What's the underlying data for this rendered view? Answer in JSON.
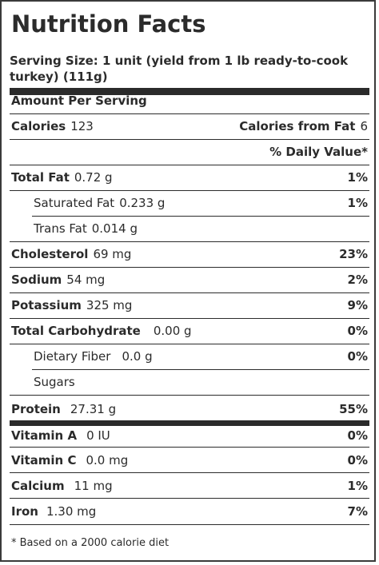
{
  "title": "Nutrition Facts",
  "serving_size": "Serving Size: 1 unit (yield from 1 lb ready-to-cook turkey) (111g)",
  "amount_per_serving": "Amount Per Serving",
  "calories": {
    "label": "Calories",
    "value": "123",
    "from_fat_label": "Calories from Fat",
    "from_fat_value": "6"
  },
  "daily_value_header": "% Daily Value*",
  "nutrients": [
    {
      "name": "Total Fat",
      "amount": "0.72 g",
      "dv": "1%"
    },
    {
      "name": "Saturated Fat",
      "amount": "0.233 g",
      "dv": "1%"
    },
    {
      "name": "Trans Fat",
      "amount": "0.014 g",
      "dv": ""
    },
    {
      "name": "Cholesterol",
      "amount": "69 mg",
      "dv": "23%"
    },
    {
      "name": "Sodium",
      "amount": "54 mg",
      "dv": "2%"
    },
    {
      "name": "Potassium",
      "amount": "325 mg",
      "dv": "9%"
    },
    {
      "name": "Total Carbohydrate",
      "amount": "0.00 g",
      "dv": "0%"
    },
    {
      "name": "Dietary Fiber",
      "amount": "0.0 g",
      "dv": "0%"
    },
    {
      "name": "Sugars",
      "amount": "",
      "dv": ""
    },
    {
      "name": "Protein",
      "amount": "27.31 g",
      "dv": "55%"
    },
    {
      "name": "Vitamin A",
      "amount": "0 IU",
      "dv": "0%"
    },
    {
      "name": "Vitamin C",
      "amount": "0.0 mg",
      "dv": "0%"
    },
    {
      "name": "Calcium",
      "amount": "11 mg",
      "dv": "1%"
    },
    {
      "name": "Iron",
      "amount": "1.30 mg",
      "dv": "7%"
    }
  ],
  "footnote": "* Based on a 2000 calorie diet"
}
